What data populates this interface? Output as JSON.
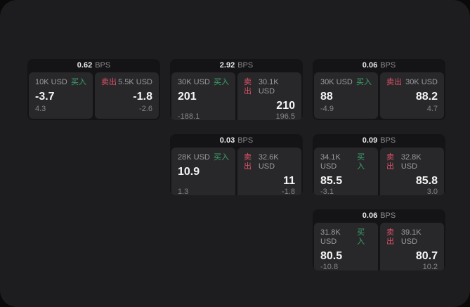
{
  "units": {
    "bps": "BPS"
  },
  "badges": {
    "buy": "买入",
    "sell": "卖出"
  },
  "colors": {
    "page_bg": "#0a0a0b",
    "panel_bg": "#1d1d1f",
    "card_bg": "#141416",
    "tile_bg": "#28282a",
    "buy_green": "#3ba26e",
    "sell_red": "#dd5268",
    "value_white": "#f4f4f5",
    "label_gray": "#9c9ca0",
    "delta_gray": "#858589"
  },
  "cards": [
    {
      "row": 1,
      "col": 1,
      "bps": "0.62",
      "buy": {
        "amount": "10K USD",
        "price": "-3.7",
        "delta": "4.3"
      },
      "sell": {
        "amount": "5.5K USD",
        "price": "-1.8",
        "delta": "-2.6"
      }
    },
    {
      "row": 1,
      "col": 2,
      "bps": "2.92",
      "buy": {
        "amount": "30K USD",
        "price": "201",
        "delta": "-188.1"
      },
      "sell": {
        "amount": "30.1K USD",
        "price": "210",
        "delta": "196.5"
      }
    },
    {
      "row": 1,
      "col": 3,
      "bps": "0.06",
      "buy": {
        "amount": "30K USD",
        "price": "88",
        "delta": "-4.9"
      },
      "sell": {
        "amount": "30K USD",
        "price": "88.2",
        "delta": "4.7"
      }
    },
    {
      "row": 2,
      "col": 2,
      "bps": "0.03",
      "buy": {
        "amount": "28K USD",
        "price": "10.9",
        "delta": "1.3"
      },
      "sell": {
        "amount": "32.6K USD",
        "price": "11",
        "delta": "-1.8"
      }
    },
    {
      "row": 2,
      "col": 3,
      "bps": "0.09",
      "buy": {
        "amount": "34.1K USD",
        "price": "85.5",
        "delta": "-3.1"
      },
      "sell": {
        "amount": "32.8K USD",
        "price": "85.8",
        "delta": "3.0"
      }
    },
    {
      "row": 3,
      "col": 3,
      "bps": "0.06",
      "buy": {
        "amount": "31.8K USD",
        "price": "80.5",
        "delta": "-10.8"
      },
      "sell": {
        "amount": "39.1K USD",
        "price": "80.7",
        "delta": "10.2"
      }
    }
  ]
}
